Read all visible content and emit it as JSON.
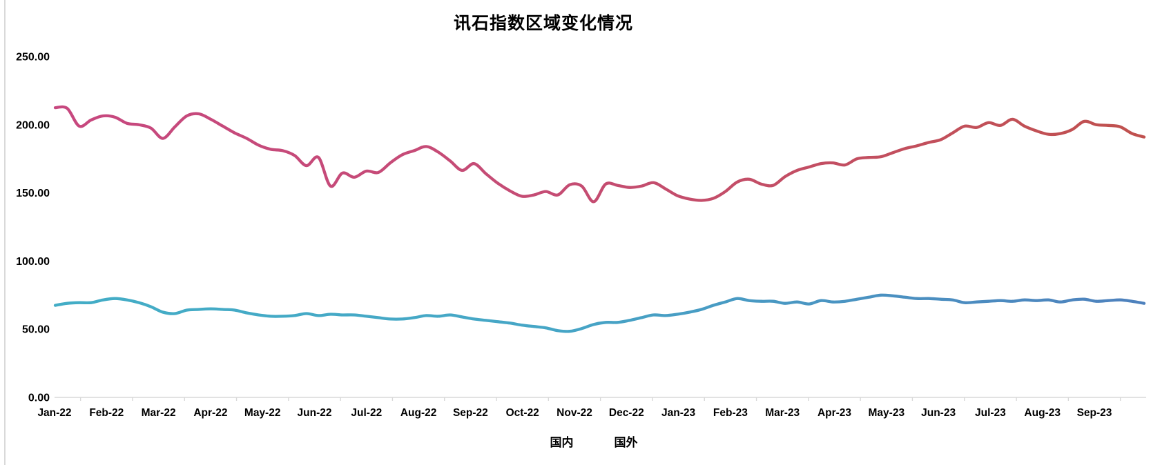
{
  "chart_data": {
    "type": "line",
    "title": "讯石指数区域变化情况",
    "x_categories": [
      "Jan-22",
      "Feb-22",
      "Mar-22",
      "Apr-22",
      "May-22",
      "Jun-22",
      "Jul-22",
      "Aug-22",
      "Sep-22",
      "Oct-22",
      "Nov-22",
      "Dec-22",
      "Jan-23",
      "Feb-23",
      "Mar-23",
      "Apr-23",
      "May-23",
      "Jun-23",
      "Jul-23",
      "Aug-23",
      "Sep-23"
    ],
    "y_axis": {
      "ticks": [
        {
          "label": "250.00",
          "value": 250
        },
        {
          "label": "200.00",
          "value": 200
        },
        {
          "label": "150.00",
          "value": 150
        },
        {
          "label": "100.00",
          "value": 100
        },
        {
          "label": "50.00",
          "value": 50
        },
        {
          "label": "0.00",
          "value": 0
        }
      ]
    },
    "ylim": [
      0,
      250
    ],
    "grid": false,
    "legend_position": "bottom",
    "axis_color": "#d9d9d9",
    "series": [
      {
        "name": "国内",
        "colors": {
          "start": "#43ADC6",
          "mid": "#46A6C6",
          "end": "#4E81BD"
        },
        "values": [
          67.5,
          69,
          69.5,
          69.5,
          71.5,
          72.5,
          71.5,
          69.5,
          66.5,
          62.5,
          61.5,
          64,
          64.5,
          65,
          64.5,
          64,
          62,
          60.5,
          59.5,
          59.5,
          60,
          61.5,
          60,
          61,
          60.5,
          60.5,
          59.5,
          58.5,
          57.5,
          57.5,
          58.5,
          60,
          59.5,
          60.5,
          59,
          57.5,
          56.5,
          55.5,
          54.5,
          53,
          52,
          51,
          49,
          48.5,
          50.5,
          53.5,
          55,
          55,
          56.5,
          58.5,
          60.5,
          60,
          61,
          62.5,
          64.5,
          67.5,
          70,
          72.5,
          71,
          70.5,
          70.5,
          69,
          70,
          68.5,
          71,
          70,
          70.5,
          72,
          73.5,
          75,
          74.5,
          73.5,
          72.5,
          72.5,
          72,
          71.5,
          69.5,
          70,
          70.5,
          71,
          70.5,
          71.5,
          71,
          71.5,
          70,
          71.5,
          72,
          70.5,
          71,
          71.5,
          70.5,
          69
        ]
      },
      {
        "name": "国外",
        "colors": {
          "start": "#C7487F",
          "mid": "#C54C74",
          "end": "#C0514E"
        },
        "values": [
          212.5,
          212,
          199,
          203.5,
          206.5,
          205.5,
          201,
          200,
          197.5,
          190,
          198.5,
          206.5,
          208,
          204,
          199,
          194,
          190,
          185,
          182,
          181,
          177.5,
          170,
          176,
          155,
          164.5,
          161.5,
          166,
          165,
          172,
          178,
          181,
          184,
          180,
          173.5,
          166.5,
          171.5,
          164,
          157,
          151.5,
          147.5,
          148.5,
          151,
          148.5,
          156,
          155,
          143.5,
          156.5,
          155.5,
          154,
          155,
          157.5,
          153,
          148,
          145.5,
          144.5,
          146,
          151,
          158,
          160,
          156.5,
          155.5,
          162,
          166.5,
          169,
          171.5,
          172,
          170.5,
          175,
          176,
          176.5,
          179.5,
          182.5,
          184.5,
          187,
          189,
          194,
          199,
          198,
          201.5,
          199.5,
          204,
          199,
          195.5,
          193,
          193.5,
          196.5,
          202.5,
          200,
          199.5,
          198.5,
          193.5,
          191
        ]
      }
    ]
  }
}
